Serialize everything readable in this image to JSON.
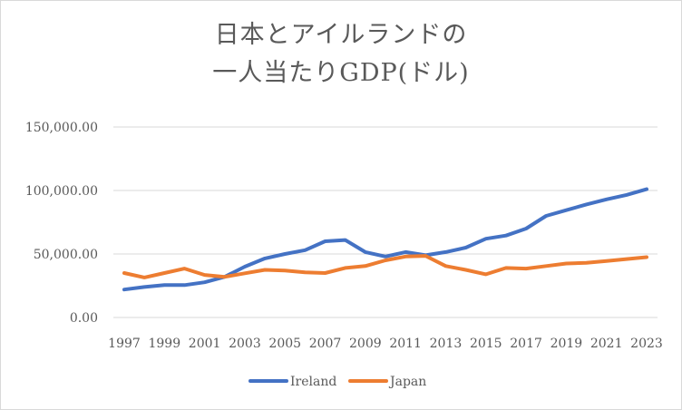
{
  "chart_data": {
    "type": "line",
    "title_lines": [
      "日本とアイルランドの",
      "一人当たりGDP(ドル)"
    ],
    "x": [
      1997,
      1998,
      1999,
      2000,
      2001,
      2002,
      2003,
      2004,
      2005,
      2006,
      2007,
      2008,
      2009,
      2010,
      2011,
      2012,
      2013,
      2014,
      2015,
      2016,
      2017,
      2018,
      2019,
      2020,
      2021,
      2022,
      2023
    ],
    "x_tick_labels": [
      "1997",
      "1999",
      "2001",
      "2003",
      "2005",
      "2007",
      "2009",
      "2011",
      "2013",
      "2015",
      "2017",
      "2019",
      "2021",
      "2023"
    ],
    "y_tick_labels": [
      "0.00",
      "50,000.00",
      "100,000.00",
      "150,000.00"
    ],
    "y_ticks": [
      0,
      50000,
      100000,
      150000
    ],
    "ylim": [
      0,
      150000
    ],
    "grid": true,
    "legend_position": "bottom",
    "series": [
      {
        "name": "Ireland",
        "color": "#4472c4",
        "values": [
          22000,
          24000,
          25500,
          25500,
          27700,
          32000,
          40000,
          46500,
          50000,
          53000,
          60000,
          61000,
          51500,
          48000,
          51500,
          49000,
          51500,
          55000,
          62000,
          64500,
          70000,
          80000,
          84500,
          89000,
          93000,
          96500,
          101000
        ]
      },
      {
        "name": "Japan",
        "color": "#ed7d31",
        "values": [
          35000,
          31500,
          35000,
          38500,
          33500,
          32000,
          34800,
          37500,
          36900,
          35500,
          35000,
          39000,
          40500,
          45000,
          48000,
          48500,
          40500,
          37500,
          34000,
          39000,
          38500,
          40500,
          42500,
          43000,
          44500,
          46000,
          47500
        ]
      }
    ]
  }
}
